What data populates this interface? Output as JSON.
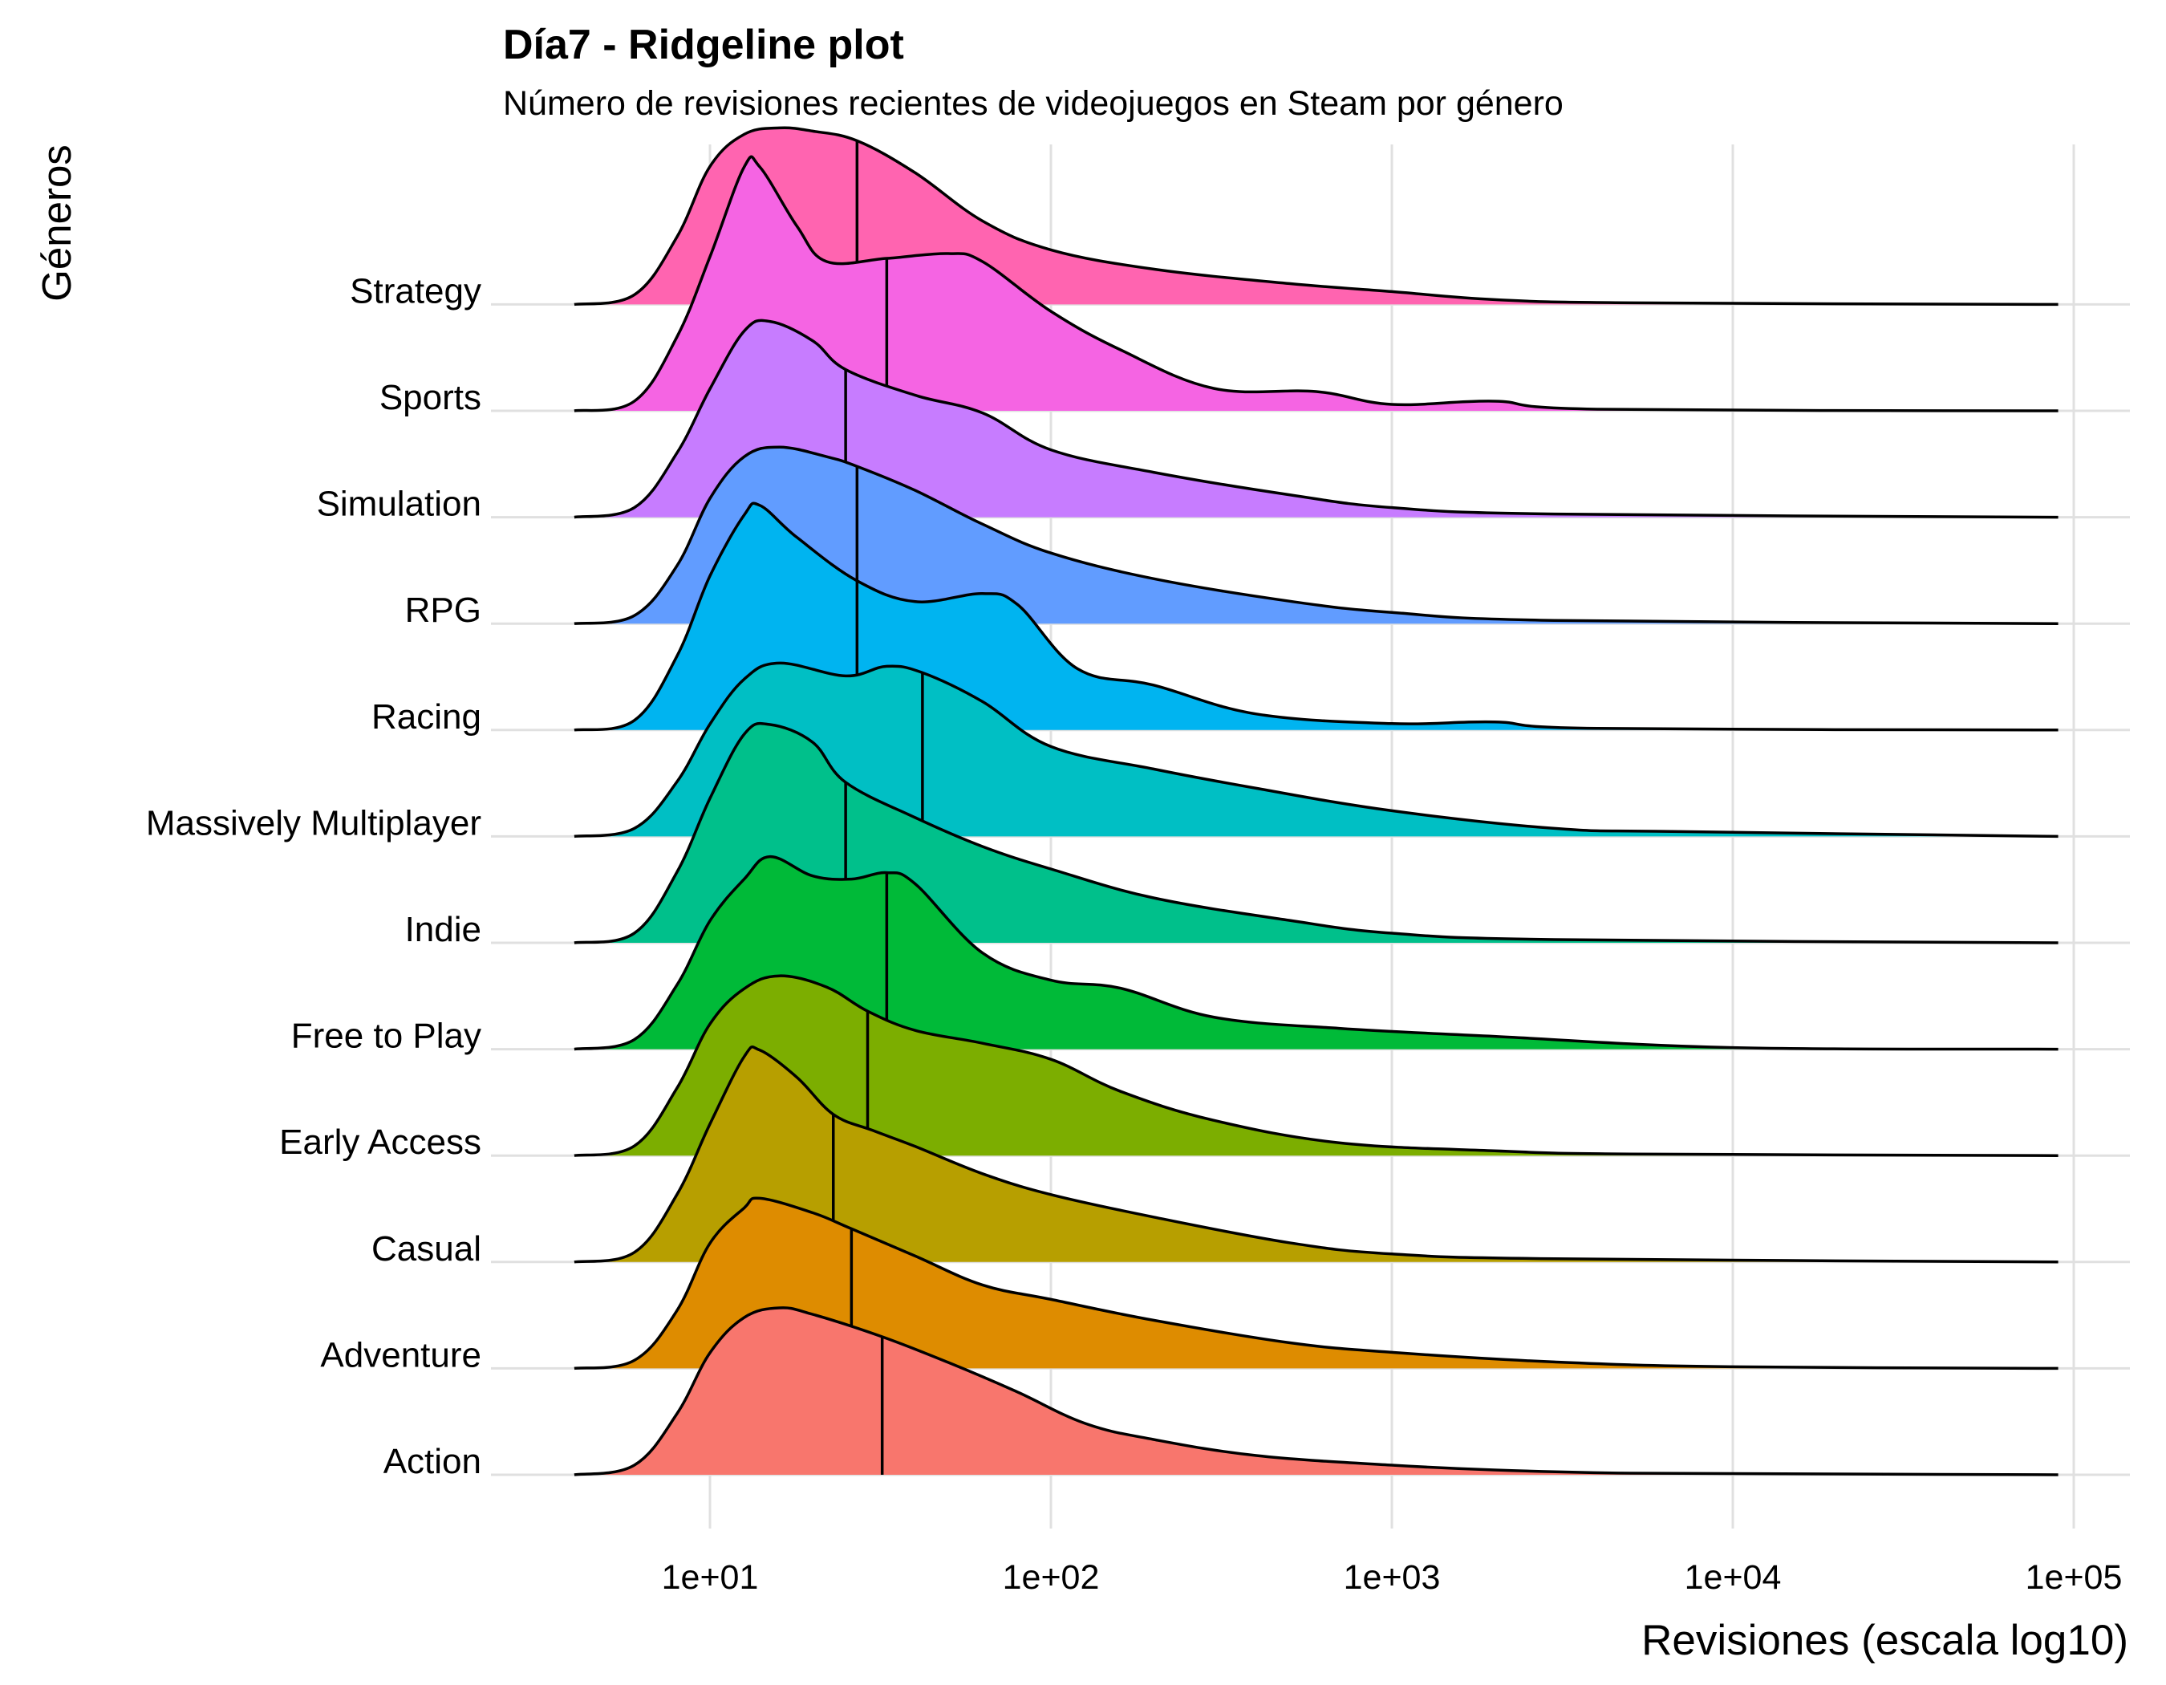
{
  "chart_data": {
    "type": "ridgeline",
    "title": "Día7 - Ridgeline plot",
    "subtitle": "Número de revisiones recientes de videojuegos en Steam por género",
    "xlabel": "Revisiones (escala log10)",
    "ylabel": "Géneros",
    "x_scale": "log10",
    "xlim": [
      4,
      90000
    ],
    "x_ticks": [
      10,
      100,
      1000,
      10000,
      100000
    ],
    "x_tick_labels": [
      "1e+01",
      "1e+02",
      "1e+03",
      "1e+04",
      "1e+05"
    ],
    "grid": true,
    "legend": "none",
    "series": [
      {
        "name": "Action",
        "color": "#F8766D",
        "median": 32,
        "density": [
          [
            4,
            0
          ],
          [
            6,
            0.06
          ],
          [
            8,
            0.38
          ],
          [
            10,
            0.76
          ],
          [
            12.6,
            0.98
          ],
          [
            16,
            1.04
          ],
          [
            20,
            1.0
          ],
          [
            32,
            0.86
          ],
          [
            50,
            0.7
          ],
          [
            79,
            0.52
          ],
          [
            126,
            0.32
          ],
          [
            200,
            0.22
          ],
          [
            400,
            0.12
          ],
          [
            1000,
            0.06
          ],
          [
            2000,
            0.03
          ],
          [
            5000,
            0.01
          ],
          [
            20000,
            0.005
          ],
          [
            90000,
            0
          ]
        ]
      },
      {
        "name": "Adventure",
        "color": "#DE8C00",
        "median": 26,
        "density": [
          [
            4,
            0
          ],
          [
            6,
            0.05
          ],
          [
            8,
            0.36
          ],
          [
            10,
            0.78
          ],
          [
            12.6,
            1.0
          ],
          [
            14,
            1.06
          ],
          [
            20,
            0.97
          ],
          [
            26,
            0.87
          ],
          [
            40,
            0.7
          ],
          [
            63,
            0.52
          ],
          [
            100,
            0.43
          ],
          [
            200,
            0.3
          ],
          [
            500,
            0.16
          ],
          [
            1000,
            0.1
          ],
          [
            3000,
            0.04
          ],
          [
            10000,
            0.01
          ],
          [
            90000,
            0
          ]
        ]
      },
      {
        "name": "Casual",
        "color": "#B79F00",
        "median": 23,
        "density": [
          [
            4,
            0
          ],
          [
            6,
            0.06
          ],
          [
            8,
            0.42
          ],
          [
            10,
            0.86
          ],
          [
            12.6,
            1.28
          ],
          [
            14,
            1.32
          ],
          [
            18,
            1.15
          ],
          [
            23,
            0.92
          ],
          [
            30,
            0.82
          ],
          [
            40,
            0.72
          ],
          [
            63,
            0.55
          ],
          [
            100,
            0.42
          ],
          [
            200,
            0.28
          ],
          [
            500,
            0.12
          ],
          [
            1000,
            0.05
          ],
          [
            3000,
            0.02
          ],
          [
            90000,
            0
          ]
        ]
      },
      {
        "name": "Early Access",
        "color": "#7CAE00",
        "median": 29,
        "density": [
          [
            4,
            0
          ],
          [
            6,
            0.06
          ],
          [
            8,
            0.42
          ],
          [
            10,
            0.82
          ],
          [
            12.6,
            1.04
          ],
          [
            16,
            1.12
          ],
          [
            22,
            1.05
          ],
          [
            29,
            0.9
          ],
          [
            40,
            0.78
          ],
          [
            63,
            0.7
          ],
          [
            100,
            0.6
          ],
          [
            160,
            0.4
          ],
          [
            300,
            0.22
          ],
          [
            700,
            0.08
          ],
          [
            2000,
            0.03
          ],
          [
            5000,
            0.01
          ],
          [
            90000,
            0
          ]
        ]
      },
      {
        "name": "Free to Play",
        "color": "#00BA38",
        "median": 33,
        "density": [
          [
            4,
            0
          ],
          [
            6,
            0.06
          ],
          [
            8,
            0.4
          ],
          [
            10,
            0.8
          ],
          [
            12.6,
            1.06
          ],
          [
            15,
            1.2
          ],
          [
            20,
            1.08
          ],
          [
            26,
            1.06
          ],
          [
            33,
            1.1
          ],
          [
            40,
            1.03
          ],
          [
            63,
            0.6
          ],
          [
            100,
            0.43
          ],
          [
            160,
            0.38
          ],
          [
            300,
            0.2
          ],
          [
            700,
            0.13
          ],
          [
            2000,
            0.08
          ],
          [
            10000,
            0.01
          ],
          [
            90000,
            0
          ]
        ]
      },
      {
        "name": "Indie",
        "color": "#00C08B",
        "median": 25,
        "density": [
          [
            4,
            0
          ],
          [
            6,
            0.06
          ],
          [
            8,
            0.44
          ],
          [
            10,
            0.9
          ],
          [
            12.6,
            1.3
          ],
          [
            15,
            1.36
          ],
          [
            20,
            1.25
          ],
          [
            25,
            1.0
          ],
          [
            40,
            0.78
          ],
          [
            63,
            0.6
          ],
          [
            100,
            0.46
          ],
          [
            200,
            0.28
          ],
          [
            500,
            0.14
          ],
          [
            1000,
            0.06
          ],
          [
            3000,
            0.02
          ],
          [
            90000,
            0
          ]
        ]
      },
      {
        "name": "Massively Multiplayer",
        "color": "#00BFC4",
        "median": 42,
        "density": [
          [
            4,
            0
          ],
          [
            6,
            0.05
          ],
          [
            8,
            0.34
          ],
          [
            10,
            0.7
          ],
          [
            12.6,
            0.98
          ],
          [
            16,
            1.08
          ],
          [
            25,
            1.0
          ],
          [
            33,
            1.06
          ],
          [
            42,
            1.02
          ],
          [
            63,
            0.84
          ],
          [
            100,
            0.56
          ],
          [
            200,
            0.42
          ],
          [
            400,
            0.3
          ],
          [
            1000,
            0.16
          ],
          [
            3000,
            0.05
          ],
          [
            7000,
            0.03
          ],
          [
            90000,
            0
          ]
        ]
      },
      {
        "name": "Racing",
        "color": "#00B4F0",
        "median": 27,
        "density": [
          [
            4,
            0
          ],
          [
            6,
            0.06
          ],
          [
            8,
            0.46
          ],
          [
            10,
            0.96
          ],
          [
            12.6,
            1.34
          ],
          [
            14,
            1.4
          ],
          [
            18,
            1.2
          ],
          [
            27,
            0.93
          ],
          [
            40,
            0.8
          ],
          [
            63,
            0.85
          ],
          [
            80,
            0.78
          ],
          [
            120,
            0.38
          ],
          [
            200,
            0.28
          ],
          [
            400,
            0.1
          ],
          [
            1000,
            0.04
          ],
          [
            2000,
            0.05
          ],
          [
            4000,
            0.01
          ],
          [
            90000,
            0
          ]
        ]
      },
      {
        "name": "RPG",
        "color": "#619CFF",
        "median": 27,
        "density": [
          [
            4,
            0
          ],
          [
            6,
            0.05
          ],
          [
            8,
            0.36
          ],
          [
            10,
            0.78
          ],
          [
            12.6,
            1.04
          ],
          [
            16,
            1.1
          ],
          [
            22,
            1.04
          ],
          [
            27,
            0.98
          ],
          [
            40,
            0.83
          ],
          [
            63,
            0.62
          ],
          [
            100,
            0.44
          ],
          [
            200,
            0.28
          ],
          [
            500,
            0.14
          ],
          [
            1000,
            0.07
          ],
          [
            3000,
            0.02
          ],
          [
            90000,
            0
          ]
        ]
      },
      {
        "name": "Simulation",
        "color": "#C77CFF",
        "median": 25,
        "density": [
          [
            4,
            0
          ],
          [
            6,
            0.06
          ],
          [
            8,
            0.4
          ],
          [
            10,
            0.8
          ],
          [
            12.6,
            1.16
          ],
          [
            15,
            1.22
          ],
          [
            20,
            1.1
          ],
          [
            25,
            0.92
          ],
          [
            40,
            0.76
          ],
          [
            63,
            0.65
          ],
          [
            100,
            0.42
          ],
          [
            200,
            0.28
          ],
          [
            500,
            0.14
          ],
          [
            1000,
            0.06
          ],
          [
            3000,
            0.02
          ],
          [
            90000,
            0
          ]
        ]
      },
      {
        "name": "Sports",
        "color": "#F564E3",
        "median": 33,
        "density": [
          [
            4,
            0
          ],
          [
            6,
            0.06
          ],
          [
            8,
            0.46
          ],
          [
            10,
            0.96
          ],
          [
            12.6,
            1.52
          ],
          [
            14,
            1.52
          ],
          [
            18,
            1.15
          ],
          [
            22,
            0.93
          ],
          [
            33,
            0.95
          ],
          [
            50,
            0.98
          ],
          [
            63,
            0.93
          ],
          [
            100,
            0.62
          ],
          [
            160,
            0.38
          ],
          [
            300,
            0.14
          ],
          [
            600,
            0.12
          ],
          [
            1000,
            0.04
          ],
          [
            2000,
            0.06
          ],
          [
            4000,
            0.01
          ],
          [
            90000,
            0
          ]
        ]
      },
      {
        "name": "Strategy",
        "color": "#FF64B0",
        "median": 27,
        "density": [
          [
            4,
            0
          ],
          [
            6,
            0.06
          ],
          [
            8,
            0.42
          ],
          [
            10,
            0.86
          ],
          [
            12.6,
            1.06
          ],
          [
            16,
            1.1
          ],
          [
            20,
            1.08
          ],
          [
            27,
            1.02
          ],
          [
            40,
            0.82
          ],
          [
            63,
            0.52
          ],
          [
            100,
            0.34
          ],
          [
            200,
            0.22
          ],
          [
            500,
            0.13
          ],
          [
            1000,
            0.08
          ],
          [
            2000,
            0.03
          ],
          [
            5000,
            0.01
          ],
          [
            90000,
            0
          ]
        ]
      }
    ]
  }
}
